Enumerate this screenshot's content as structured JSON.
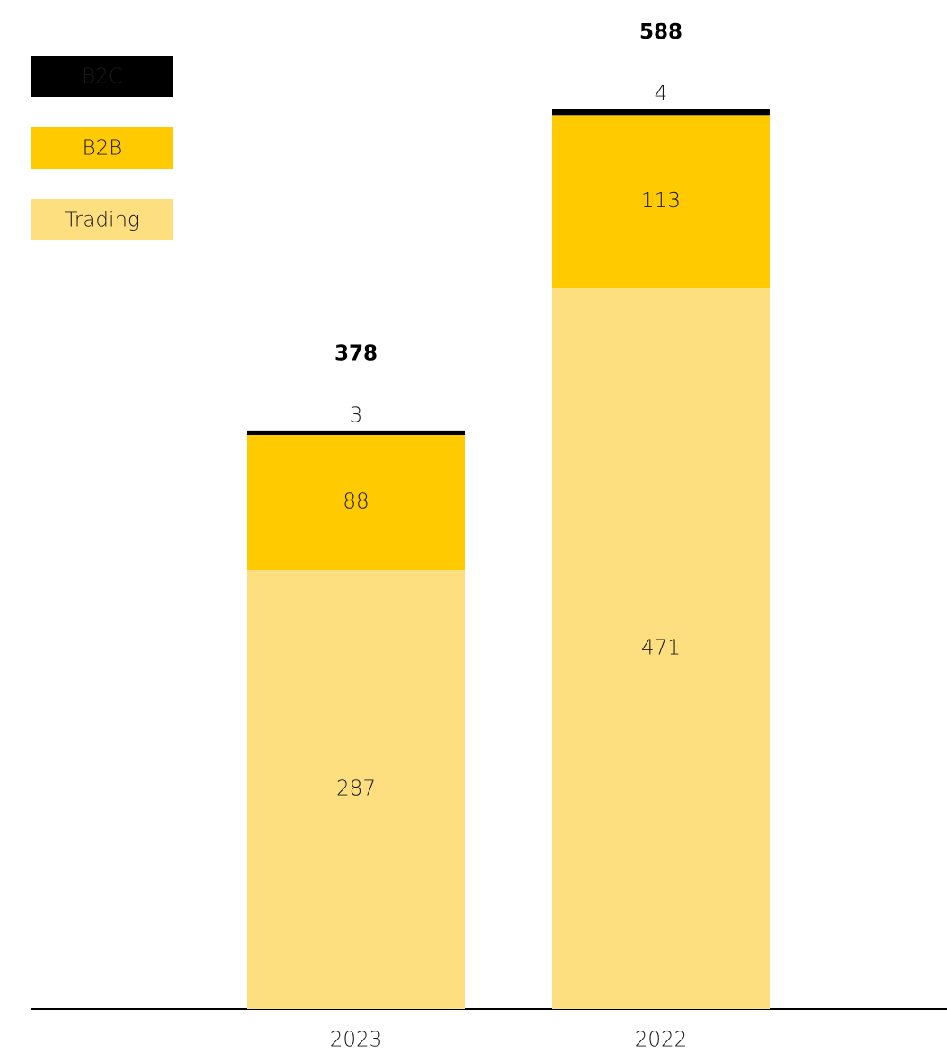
{
  "chart_data": {
    "type": "stacked_bar",
    "categories": [
      "2023",
      "2022"
    ],
    "series": [
      {
        "name": "Trading",
        "color": "#fedf80",
        "values": [
          287,
          471
        ]
      },
      {
        "name": "B2B",
        "color": "#ffcb00",
        "values": [
          88,
          113
        ]
      },
      {
        "name": "B2C",
        "color": "#000000",
        "values": [
          3,
          4
        ]
      }
    ],
    "totals": [
      378,
      588
    ],
    "ylim": [
      0,
      600
    ],
    "legend": "top-left"
  }
}
